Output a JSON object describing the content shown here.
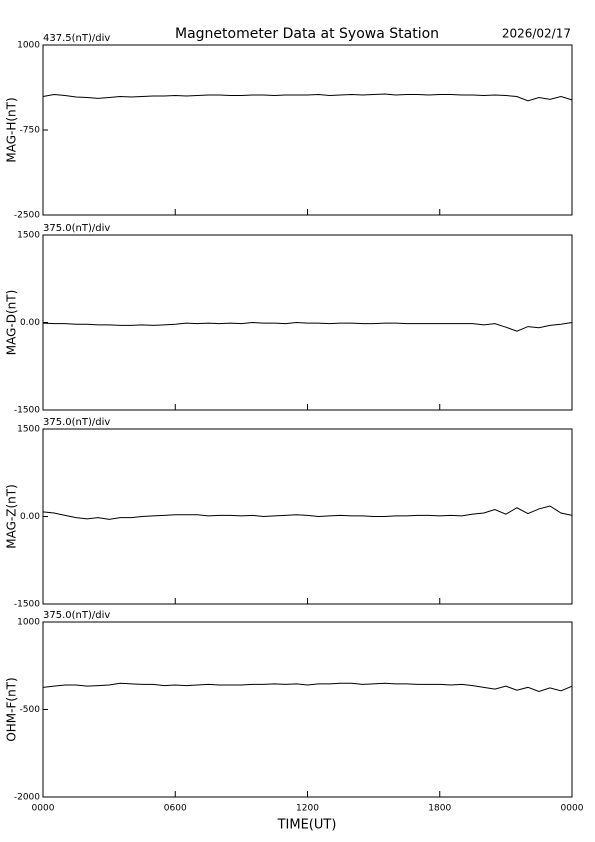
{
  "title": "Magnetometer Data at Syowa Station",
  "date": "2026/02/17",
  "x_label": "TIME(UT)",
  "xlim": [
    0,
    24
  ],
  "xticks": [
    {
      "value": 0,
      "label": "0000"
    },
    {
      "value": 6,
      "label": "0600"
    },
    {
      "value": 12,
      "label": "1200"
    },
    {
      "value": 18,
      "label": "1800"
    },
    {
      "value": 24,
      "label": "0000"
    }
  ],
  "chart_data": [
    {
      "type": "line",
      "scale_label": "437.5(nT)/div",
      "y_label": "MAG-H(nT)",
      "ylim": [
        -2500,
        1000
      ],
      "yticks": [
        1000,
        -750,
        -2500
      ],
      "color": "#000000",
      "x": [
        0,
        0.5,
        1,
        1.5,
        2,
        2.5,
        3,
        3.5,
        4,
        4.5,
        5,
        5.5,
        6,
        6.5,
        7,
        7.5,
        8,
        8.5,
        9,
        9.5,
        10,
        10.5,
        11,
        11.5,
        12,
        12.5,
        13,
        13.5,
        14,
        14.5,
        15,
        15.5,
        16,
        16.5,
        17,
        17.5,
        18,
        18.5,
        19,
        19.5,
        20,
        20.5,
        21,
        21.5,
        22,
        22.5,
        23,
        23.5,
        24
      ],
      "values": [
        -60,
        -20,
        -40,
        -70,
        -80,
        -100,
        -80,
        -60,
        -70,
        -60,
        -50,
        -50,
        -40,
        -50,
        -40,
        -30,
        -30,
        -40,
        -40,
        -30,
        -30,
        -40,
        -30,
        -30,
        -30,
        -20,
        -40,
        -30,
        -20,
        -30,
        -20,
        -10,
        -30,
        -20,
        -20,
        -30,
        -20,
        -20,
        -30,
        -30,
        -40,
        -30,
        -40,
        -60,
        -150,
        -80,
        -120,
        -60,
        -130
      ]
    },
    {
      "type": "line",
      "scale_label": "375.0(nT)/div",
      "y_label": "MAG-D(nT)",
      "ylim": [
        -1500,
        1500
      ],
      "yticks": [
        1500,
        {
          "value": 0,
          "label": "0.00"
        },
        -1500
      ],
      "color": "#000000",
      "x": [
        0,
        0.5,
        1,
        1.5,
        2,
        2.5,
        3,
        3.5,
        4,
        4.5,
        5,
        5.5,
        6,
        6.5,
        7,
        7.5,
        8,
        8.5,
        9,
        9.5,
        10,
        10.5,
        11,
        11.5,
        12,
        12.5,
        13,
        13.5,
        14,
        14.5,
        15,
        15.5,
        16,
        16.5,
        17,
        17.5,
        18,
        18.5,
        19,
        19.5,
        20,
        20.5,
        21,
        21.5,
        22,
        22.5,
        23,
        23.5,
        24
      ],
      "values": [
        -10,
        -20,
        -20,
        -30,
        -30,
        -40,
        -40,
        -50,
        -50,
        -40,
        -50,
        -40,
        -30,
        -10,
        -20,
        -10,
        -20,
        -10,
        -20,
        0,
        -10,
        -10,
        -20,
        0,
        -10,
        -10,
        -20,
        -10,
        -10,
        -20,
        -20,
        -10,
        -10,
        -20,
        -20,
        -20,
        -20,
        -20,
        -20,
        -20,
        -40,
        -20,
        -80,
        -150,
        -70,
        -90,
        -50,
        -30,
        0
      ]
    },
    {
      "type": "line",
      "scale_label": "375.0(nT)/div",
      "y_label": "MAG-Z(nT)",
      "ylim": [
        -1500,
        1500
      ],
      "yticks": [
        1500,
        {
          "value": 0,
          "label": "0.00"
        },
        -1500
      ],
      "color": "#000000",
      "x": [
        0,
        0.5,
        1,
        1.5,
        2,
        2.5,
        3,
        3.5,
        4,
        4.5,
        5,
        5.5,
        6,
        6.5,
        7,
        7.5,
        8,
        8.5,
        9,
        9.5,
        10,
        10.5,
        11,
        11.5,
        12,
        12.5,
        13,
        13.5,
        14,
        14.5,
        15,
        15.5,
        16,
        16.5,
        17,
        17.5,
        18,
        18.5,
        19,
        19.5,
        20,
        20.5,
        21,
        21.5,
        22,
        22.5,
        23,
        23.5,
        24
      ],
      "values": [
        80,
        60,
        20,
        -20,
        -40,
        -20,
        -50,
        -20,
        -20,
        0,
        10,
        20,
        30,
        30,
        30,
        10,
        20,
        20,
        10,
        20,
        0,
        10,
        20,
        30,
        20,
        0,
        10,
        20,
        10,
        10,
        0,
        0,
        10,
        10,
        20,
        20,
        10,
        20,
        10,
        40,
        60,
        120,
        40,
        150,
        50,
        130,
        180,
        60,
        20
      ]
    },
    {
      "type": "line",
      "scale_label": "375.0(nT)/div",
      "y_label": "OHM-F(nT)",
      "ylim": [
        -2000,
        1000
      ],
      "yticks": [
        1000,
        -500,
        -2000
      ],
      "color": "#000000",
      "x": [
        0,
        0.5,
        1,
        1.5,
        2,
        2.5,
        3,
        3.5,
        4,
        4.5,
        5,
        5.5,
        6,
        6.5,
        7,
        7.5,
        8,
        8.5,
        9,
        9.5,
        10,
        10.5,
        11,
        11.5,
        12,
        12.5,
        13,
        13.5,
        14,
        14.5,
        15,
        15.5,
        16,
        16.5,
        17,
        17.5,
        18,
        18.5,
        19,
        19.5,
        20,
        20.5,
        21,
        21.5,
        22,
        22.5,
        23,
        23.5,
        24
      ],
      "values": [
        -120,
        -100,
        -80,
        -80,
        -100,
        -90,
        -80,
        -50,
        -60,
        -70,
        -70,
        -90,
        -80,
        -90,
        -80,
        -70,
        -80,
        -80,
        -80,
        -70,
        -70,
        -60,
        -70,
        -60,
        -80,
        -60,
        -60,
        -50,
        -50,
        -70,
        -60,
        -50,
        -60,
        -60,
        -70,
        -70,
        -70,
        -80,
        -70,
        -90,
        -120,
        -150,
        -100,
        -170,
        -120,
        -190,
        -130,
        -180,
        -100
      ]
    }
  ]
}
